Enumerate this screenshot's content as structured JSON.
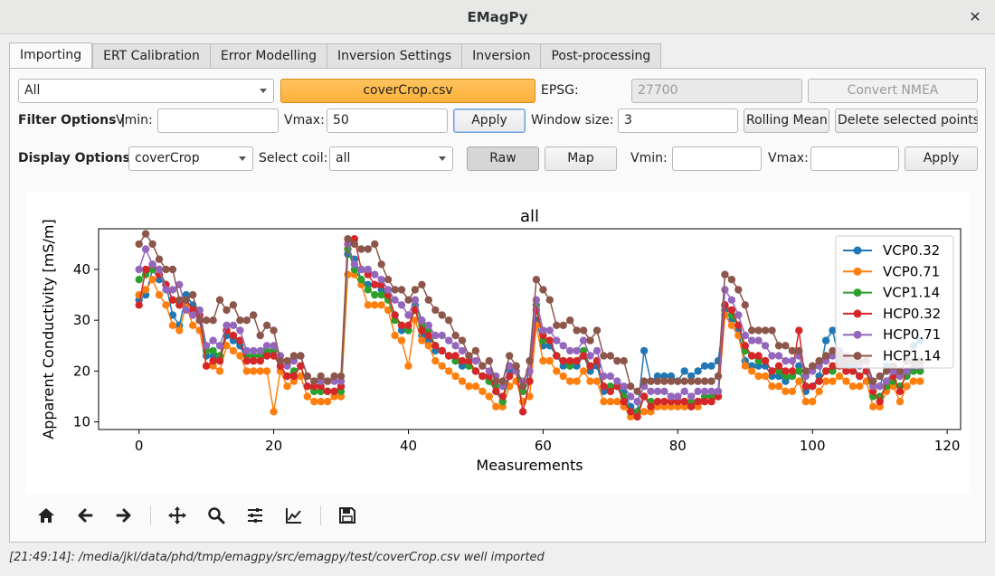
{
  "window": {
    "title": "EMagPy",
    "close": "✕"
  },
  "tabs": [
    "Importing",
    "ERT Calibration",
    "Error Modelling",
    "Inversion Settings",
    "Inversion",
    "Post-processing"
  ],
  "row1": {
    "survey_select": "All",
    "file_button": "coverCrop.csv",
    "epsg_label": "EPSG:",
    "epsg_value": "27700",
    "convert_button": "Convert NMEA"
  },
  "filter": {
    "label": "Filter Options |",
    "vmin_label": "Vmin:",
    "vmin_value": "",
    "vmax_label": "Vmax:",
    "vmax_value": "50",
    "apply": "Apply",
    "window_label": "Window size:",
    "window_value": "3",
    "rolling_button": "Rolling Mean",
    "delete_button": "Delete selected points"
  },
  "display": {
    "label": "Display Options |",
    "survey_select": "coverCrop",
    "coil_label": "Select coil:",
    "coil_select": "all",
    "raw_button": "Raw",
    "map_button": "Map",
    "vmin_label": "Vmin:",
    "vmin_value": "",
    "vmax_label": "Vmax:",
    "vmax_value": "",
    "apply": "Apply"
  },
  "toolbar_icons": [
    "home-icon",
    "back-arrow-icon",
    "forward-arrow-icon",
    "pan-icon",
    "zoom-icon",
    "configure-subplots-icon",
    "edit-axis-icon",
    "save-icon"
  ],
  "status": "[21:49:14]: /media/jkl/data/phd/tmp/emagpy/src/emagpy/test/coverCrop.csv well imported",
  "chart_data": {
    "type": "line",
    "title": "all",
    "xlabel": "Measurements",
    "ylabel": "Apparent Conductivity [mS/m]",
    "xlim": [
      -6,
      122
    ],
    "ylim": [
      8.5,
      48
    ],
    "xticks": [
      0,
      20,
      40,
      60,
      80,
      100,
      120
    ],
    "yticks": [
      10,
      20,
      30,
      40
    ],
    "legend_position": "top-right",
    "series": [
      {
        "name": "VCP0.32",
        "color": "#1f77b4",
        "values": [
          34,
          35,
          40,
          38,
          37,
          31,
          29,
          35,
          33,
          30,
          23,
          23,
          22,
          27,
          26,
          25,
          22,
          22,
          22,
          23,
          24,
          20,
          19,
          19,
          21,
          17,
          16,
          16,
          16,
          16,
          17,
          43,
          42,
          38,
          37,
          37,
          36,
          35,
          31,
          28,
          28,
          33,
          27,
          26,
          24,
          24,
          23,
          22,
          21,
          21,
          20,
          19,
          18,
          16,
          14,
          20,
          21,
          16,
          20,
          30,
          25,
          25,
          23,
          21,
          21,
          21,
          23,
          20,
          21,
          16,
          16,
          17,
          16,
          13,
          12,
          24,
          18,
          19,
          19,
          19,
          18,
          20,
          19,
          20,
          21,
          21,
          22,
          32,
          30,
          28,
          22,
          21,
          21,
          21,
          19,
          19,
          18,
          19,
          21,
          16,
          17,
          19,
          26,
          28,
          22,
          21,
          21,
          19,
          20,
          17,
          17,
          21,
          20,
          20,
          22,
          25,
          26
        ]
      },
      {
        "name": "VCP0.71",
        "color": "#ff7f0e",
        "values": [
          35,
          36,
          38,
          35,
          33,
          29,
          28,
          33,
          29,
          28,
          21,
          21,
          20,
          25,
          24,
          23,
          20,
          20,
          20,
          20,
          12,
          20,
          17,
          18,
          19,
          15,
          14,
          14,
          14,
          15,
          15,
          39,
          39,
          37,
          33,
          33,
          33,
          32,
          27,
          26,
          21,
          30,
          26,
          25,
          22,
          21,
          20,
          19,
          18,
          17,
          17,
          16,
          15,
          13,
          13,
          17,
          18,
          14,
          15,
          29,
          22,
          22,
          20,
          19,
          18,
          18,
          20,
          18,
          18,
          14,
          14,
          14,
          13,
          11,
          11,
          12,
          12,
          13,
          13,
          13,
          13,
          13,
          13,
          13,
          14,
          14,
          15,
          31,
          29,
          27,
          21,
          20,
          19,
          19,
          17,
          17,
          16,
          16,
          18,
          14,
          14,
          16,
          18,
          18,
          19,
          18,
          17,
          17,
          18,
          13,
          13,
          16,
          17,
          14,
          17,
          18,
          18
        ]
      },
      {
        "name": "VCP1.14",
        "color": "#2ca02c",
        "values": [
          38,
          39,
          40,
          40,
          37,
          34,
          33,
          34,
          32,
          31,
          24,
          24,
          23,
          28,
          27,
          26,
          23,
          23,
          23,
          24,
          24,
          21,
          19,
          20,
          21,
          17,
          16,
          16,
          16,
          16,
          16,
          44,
          40,
          38,
          36,
          35,
          35,
          34,
          30,
          29,
          28,
          34,
          29,
          28,
          25,
          24,
          23,
          22,
          22,
          21,
          20,
          19,
          18,
          17,
          14,
          19,
          20,
          16,
          18,
          33,
          26,
          26,
          23,
          22,
          21,
          22,
          24,
          21,
          22,
          17,
          17,
          17,
          15,
          12,
          12,
          15,
          14,
          14,
          14,
          14,
          14,
          14,
          14,
          14,
          15,
          15,
          16,
          33,
          31,
          29,
          24,
          23,
          22,
          22,
          20,
          20,
          19,
          19,
          20,
          17,
          17,
          18,
          20,
          20,
          21,
          20,
          20,
          19,
          20,
          15,
          15,
          17,
          18,
          17,
          19,
          20,
          20
        ]
      },
      {
        "name": "HCP0.32",
        "color": "#d62728",
        "values": [
          33,
          40,
          41,
          39,
          37,
          34,
          33,
          34,
          32,
          31,
          21,
          22,
          22,
          28,
          27,
          26,
          22,
          22,
          22,
          23,
          23,
          21,
          19,
          19,
          21,
          17,
          17,
          17,
          16,
          16,
          17,
          45,
          46,
          40,
          39,
          37,
          37,
          35,
          31,
          29,
          29,
          32,
          28,
          27,
          25,
          24,
          23,
          23,
          22,
          22,
          20,
          19,
          19,
          16,
          15,
          19,
          20,
          12,
          18,
          32,
          27,
          26,
          23,
          22,
          22,
          22,
          23,
          21,
          22,
          17,
          16,
          17,
          14,
          12,
          11,
          15,
          13,
          14,
          14,
          14,
          14,
          14,
          13,
          14,
          14,
          14,
          15,
          33,
          32,
          29,
          25,
          23,
          23,
          22,
          20,
          21,
          20,
          20,
          28,
          17,
          17,
          18,
          20,
          21,
          21,
          20,
          20,
          19,
          20,
          16,
          14,
          18,
          19,
          16,
          20,
          21,
          21
        ]
      },
      {
        "name": "HCP0.71",
        "color": "#9467bd",
        "values": [
          40,
          44,
          41,
          40,
          36,
          36,
          37,
          32,
          31,
          32,
          25,
          26,
          25,
          29,
          29,
          28,
          24,
          24,
          24,
          25,
          25,
          23,
          21,
          22,
          23,
          19,
          18,
          18,
          18,
          18,
          18,
          45,
          41,
          40,
          40,
          39,
          38,
          36,
          34,
          33,
          31,
          34,
          30,
          29,
          27,
          27,
          26,
          25,
          24,
          23,
          22,
          21,
          20,
          19,
          17,
          21,
          20,
          18,
          20,
          34,
          28,
          28,
          26,
          25,
          24,
          24,
          26,
          23,
          24,
          19,
          19,
          18,
          17,
          15,
          14,
          17,
          16,
          16,
          16,
          15,
          15,
          16,
          15,
          16,
          16,
          16,
          16,
          36,
          34,
          31,
          27,
          26,
          26,
          25,
          23,
          23,
          22,
          22,
          23,
          19,
          20,
          21,
          22,
          23,
          24,
          23,
          22,
          21,
          22,
          17,
          17,
          18,
          20,
          19,
          20,
          21,
          21
        ]
      },
      {
        "name": "HCP1.14",
        "color": "#8c564b",
        "values": [
          45,
          47,
          45,
          42,
          40,
          40,
          34,
          34,
          35,
          30,
          30,
          30,
          34,
          32,
          33,
          30,
          30,
          31,
          27,
          29,
          28,
          22,
          22,
          23,
          23,
          19,
          18,
          19,
          18,
          19,
          19,
          46,
          45,
          44,
          44,
          45,
          41,
          38,
          36,
          36,
          34,
          36,
          37,
          34,
          32,
          31,
          30,
          27,
          26,
          23,
          24,
          21,
          22,
          18,
          18,
          23,
          21,
          17,
          22,
          38,
          36,
          34,
          29,
          29,
          30,
          28,
          28,
          26,
          28,
          23,
          23,
          22,
          22,
          17,
          16,
          18,
          18,
          18,
          18,
          18,
          18,
          18,
          18,
          18,
          18,
          18,
          19,
          39,
          38,
          36,
          33,
          28,
          28,
          28,
          28,
          25,
          25,
          24,
          24,
          20,
          21,
          22,
          23,
          24,
          23,
          22,
          22,
          22,
          22,
          18,
          19,
          20,
          21,
          20,
          22,
          22,
          22
        ]
      }
    ]
  }
}
